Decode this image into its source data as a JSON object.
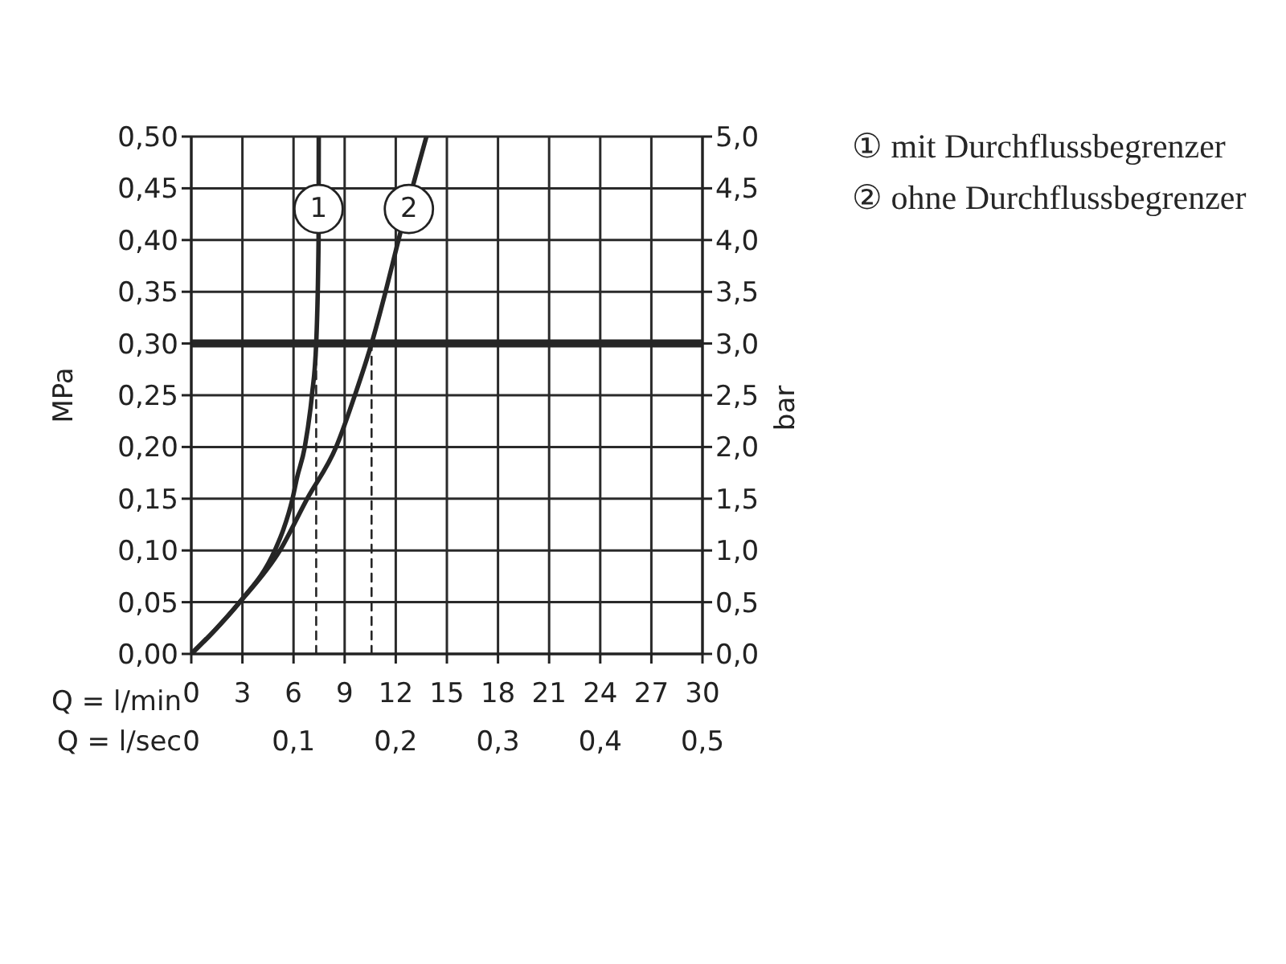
{
  "chart_data": {
    "type": "line",
    "xlabel": "Q = l/min",
    "x2label": "Q = l/sec",
    "ylabel": "MPa",
    "y2label": "bar",
    "xlim": [
      0,
      30
    ],
    "xticks": [
      0,
      3,
      6,
      9,
      12,
      15,
      18,
      21,
      24,
      27,
      30
    ],
    "x2lim": [
      0,
      0.5
    ],
    "x2ticks": [
      0,
      {
        "value": 0.1,
        "label": "0,1"
      },
      {
        "value": 0.2,
        "label": "0,2"
      },
      {
        "value": 0.3,
        "label": "0,3"
      },
      {
        "value": 0.4,
        "label": "0,4"
      },
      {
        "value": 0.5,
        "label": "0,5"
      }
    ],
    "ylim": [
      0,
      0.5
    ],
    "yticks": [
      {
        "value": 0,
        "label": "0,00"
      },
      {
        "value": 0.05,
        "label": "0,05"
      },
      {
        "value": 0.1,
        "label": "0,10"
      },
      {
        "value": 0.15,
        "label": "0,15"
      },
      {
        "value": 0.2,
        "label": "0,20"
      },
      {
        "value": 0.25,
        "label": "0,25"
      },
      {
        "value": 0.3,
        "label": "0,30"
      },
      {
        "value": 0.35,
        "label": "0,35"
      },
      {
        "value": 0.4,
        "label": "0,40"
      },
      {
        "value": 0.45,
        "label": "0,45"
      },
      {
        "value": 0.5,
        "label": "0,50"
      }
    ],
    "y2lim": [
      0,
      5
    ],
    "y2ticks": [
      {
        "value": 0,
        "label": "0,0"
      },
      {
        "value": 0.5,
        "label": "0,5"
      },
      {
        "value": 1,
        "label": "1,0"
      },
      {
        "value": 1.5,
        "label": "1,5"
      },
      {
        "value": 2,
        "label": "2,0"
      },
      {
        "value": 2.5,
        "label": "2,5"
      },
      {
        "value": 3,
        "label": "3,0"
      },
      {
        "value": 3.5,
        "label": "3,5"
      },
      {
        "value": 4,
        "label": "4,0"
      },
      {
        "value": 4.5,
        "label": "4,5"
      },
      {
        "value": 5,
        "label": "5,0"
      }
    ],
    "grid": true,
    "legend": "top right",
    "marker": "none",
    "line_style": "solid",
    "series": [
      {
        "name": "① mit Durchflussbegrenzer",
        "color": "#262626",
        "x": [
          0,
          1.5,
          2.84,
          4.9,
          5.4,
          5.94,
          6.2,
          6.66,
          7.08,
          7.33,
          7.47,
          7.48
        ],
        "values": [
          0,
          0.025,
          0.05,
          0.1,
          0.12,
          0.15,
          0.17,
          0.2,
          0.25,
          0.3,
          0.4,
          0.5
        ]
      },
      {
        "name": "② ohne Durchflussbegrenzer",
        "color": "#262626",
        "x": [
          0,
          1.5,
          2.84,
          5.2,
          6.8,
          8.5,
          9.6,
          10.58,
          11.4,
          12.16,
          13.8
        ],
        "values": [
          0,
          0.025,
          0.05,
          0.1,
          0.15,
          0.2,
          0.25,
          0.3,
          0.35,
          0.4,
          0.5
        ]
      },
      {
        "color": "#262626",
        "line_style": "dashed",
        "x": [
          7.33,
          7.33
        ],
        "values": [
          0,
          0.3
        ]
      },
      {
        "color": "#262626",
        "line_style": "dashed",
        "x": [
          10.58,
          10.58
        ],
        "values": [
          0,
          0.3
        ]
      }
    ],
    "ref_lines": [
      {
        "axis": "y",
        "value": 0.3,
        "color": "#262626"
      }
    ],
    "annotations": [
      {
        "text": "1",
        "x": 7.47,
        "y": 0.43
      },
      {
        "text": "2",
        "x": 12.77,
        "y": 0.43
      }
    ]
  }
}
